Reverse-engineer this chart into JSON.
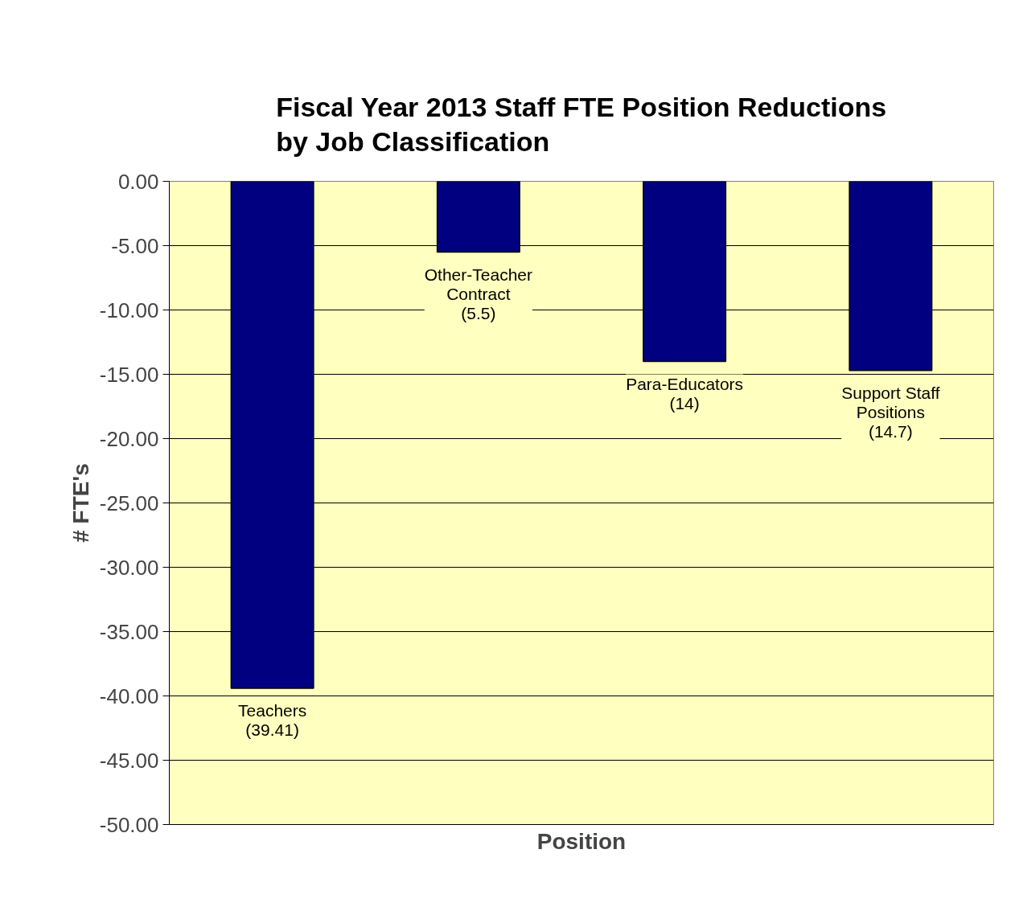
{
  "chart_data": {
    "type": "bar",
    "title": "Fiscal Year 2013 Staff FTE Position Reductions by Job Classification",
    "xlabel": "Position",
    "ylabel": "# FTE's",
    "categories": [
      "Teachers",
      "Other-Teacher Contract",
      "Para-Educators",
      "Support Staff Positions"
    ],
    "values": [
      -39.41,
      -5.5,
      -14,
      -14.7
    ],
    "value_labels": [
      "(39.41)",
      "(5.5)",
      "(14)",
      "(14.7)"
    ],
    "color": "#000080",
    "ylim": [
      -50,
      0
    ],
    "yticks": [
      {
        "value": -50,
        "label": "-50.00"
      },
      {
        "value": -45,
        "label": "-45.00"
      },
      {
        "value": -40,
        "label": "-40.00"
      },
      {
        "value": -35,
        "label": "-35.00"
      },
      {
        "value": -30,
        "label": "-30.00"
      },
      {
        "value": -25,
        "label": "-25.00"
      },
      {
        "value": -20,
        "label": "-20.00"
      },
      {
        "value": -15,
        "label": "-15.00"
      },
      {
        "value": -10,
        "label": "-10.00"
      },
      {
        "value": -5,
        "label": "-5.00"
      },
      {
        "value": 0,
        "label": "0.00"
      }
    ],
    "grid": "y",
    "tick_labels": "y"
  }
}
